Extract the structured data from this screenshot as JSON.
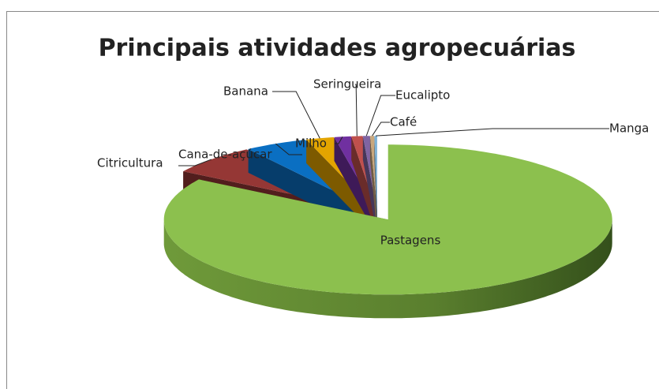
{
  "chart_data": {
    "type": "pie3d",
    "title": "Principais atividades agropecuárias",
    "categories": [
      "Pastagens",
      "Citricultura",
      "Cana-de-açúcar",
      "Banana",
      "Milho",
      "Seringueira",
      "Eucalipto",
      "Café",
      "Manga"
    ],
    "values": [
      84,
      6.5,
      4.5,
      2,
      1.2,
      0.8,
      0.5,
      0.3,
      0.2
    ],
    "colors": [
      "#8cc04e",
      "#953735",
      "#0a6fc2",
      "#e3a400",
      "#7030a0",
      "#c0504d",
      "#8064a2",
      "#c9a77c",
      "#7fb2d6"
    ]
  }
}
